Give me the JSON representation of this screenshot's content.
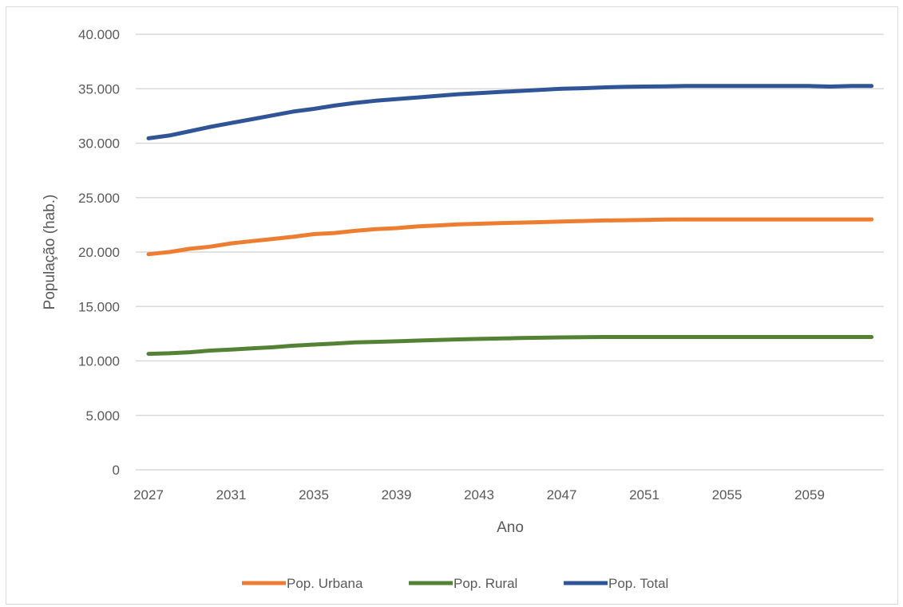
{
  "chart_data": {
    "type": "line",
    "title": "",
    "xlabel": "Ano",
    "ylabel": "População (hab.)",
    "ylim": [
      0,
      40000
    ],
    "yticks": [
      "0",
      "5.000",
      "10.000",
      "15.000",
      "20.000",
      "25.000",
      "30.000",
      "35.000",
      "40.000"
    ],
    "ytick_values": [
      0,
      5000,
      10000,
      15000,
      20000,
      25000,
      30000,
      35000,
      40000
    ],
    "xticks": [
      "2027",
      "2031",
      "2035",
      "2039",
      "2043",
      "2047",
      "2051",
      "2055",
      "2059"
    ],
    "xtick_values": [
      2027,
      2031,
      2035,
      2039,
      2043,
      2047,
      2051,
      2055,
      2059
    ],
    "x": [
      2027,
      2028,
      2029,
      2030,
      2031,
      2032,
      2033,
      2034,
      2035,
      2036,
      2037,
      2038,
      2039,
      2040,
      2041,
      2042,
      2043,
      2044,
      2045,
      2046,
      2047,
      2048,
      2049,
      2050,
      2051,
      2052,
      2053,
      2054,
      2055,
      2056,
      2057,
      2058,
      2059,
      2060,
      2061,
      2062
    ],
    "grid": "horizontal",
    "legend_position": "bottom",
    "series": [
      {
        "name": "Pop. Urbana",
        "color": "#ed7d31",
        "values": [
          19800,
          20000,
          20300,
          20500,
          20800,
          21000,
          21200,
          21400,
          21650,
          21750,
          21950,
          22100,
          22200,
          22350,
          22450,
          22550,
          22600,
          22650,
          22700,
          22750,
          22800,
          22850,
          22900,
          22920,
          22950,
          22980,
          23000,
          23000,
          23000,
          23000,
          23000,
          23000,
          23000,
          23000,
          23000,
          23000
        ]
      },
      {
        "name": "Pop. Rural",
        "color": "#548235",
        "values": [
          10650,
          10700,
          10800,
          10950,
          11050,
          11150,
          11250,
          11400,
          11500,
          11600,
          11700,
          11750,
          11800,
          11870,
          11930,
          11980,
          12020,
          12060,
          12100,
          12130,
          12160,
          12180,
          12200,
          12200,
          12200,
          12200,
          12200,
          12200,
          12200,
          12200,
          12200,
          12200,
          12200,
          12200,
          12200,
          12200
        ]
      },
      {
        "name": "Pop. Total",
        "color": "#2f5597",
        "values": [
          30450,
          30700,
          31100,
          31500,
          31850,
          32200,
          32550,
          32900,
          33150,
          33450,
          33700,
          33900,
          34050,
          34200,
          34350,
          34500,
          34600,
          34700,
          34800,
          34900,
          35000,
          35050,
          35120,
          35170,
          35200,
          35220,
          35250,
          35250,
          35250,
          35250,
          35250,
          35250,
          35250,
          35200,
          35250,
          35250
        ]
      }
    ]
  }
}
